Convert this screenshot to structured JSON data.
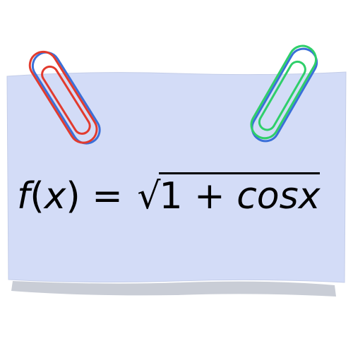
{
  "formula": {
    "function_name": "f",
    "open_paren": "(",
    "variable": "x",
    "close_paren": ")",
    "equals": "=",
    "radical": "√",
    "constant": "1",
    "plus": "+",
    "term": "cosx"
  },
  "colors": {
    "note_fill": "#d3dcf7",
    "note_shadow": "#c9cdd6",
    "clip_left": "#e23b2e",
    "clip_left_shadow": "#3a6fd8",
    "clip_right": "#2fcf6a",
    "clip_right_shadow": "#3a6fd8"
  },
  "icons": {
    "left_clip": "paperclip-icon",
    "right_clip": "paperclip-icon"
  }
}
